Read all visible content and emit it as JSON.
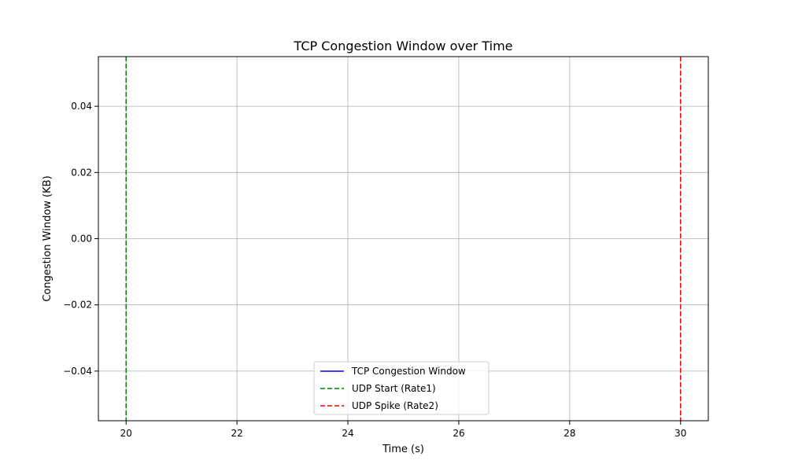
{
  "chart_data": {
    "type": "line",
    "title": "TCP Congestion Window over Time",
    "xlabel": "Time (s)",
    "ylabel": "Congestion Window (KB)",
    "xlim": [
      19.5,
      30.5
    ],
    "ylim": [
      -0.055,
      0.055
    ],
    "xticks": [
      20,
      22,
      24,
      26,
      28,
      30
    ],
    "xtick_labels": [
      "20",
      "22",
      "24",
      "26",
      "28",
      "30"
    ],
    "yticks": [
      -0.04,
      -0.02,
      0.0,
      0.02,
      0.04
    ],
    "ytick_labels": [
      "−0.04",
      "−0.02",
      "0.00",
      "0.02",
      "0.04"
    ],
    "grid": true,
    "legend_position": "lower center",
    "series": [
      {
        "name": "TCP Congestion Window",
        "x": [],
        "y": [],
        "color": "#0000ff",
        "style": "solid"
      }
    ],
    "vlines": [
      {
        "name": "UDP Start (Rate1)",
        "x": 20,
        "color": "#008000",
        "style": "dashed"
      },
      {
        "name": "UDP Spike (Rate2)",
        "x": 30,
        "color": "#ff0000",
        "style": "dashed"
      }
    ],
    "legend": [
      {
        "label": "TCP Congestion Window",
        "color": "#0000ff",
        "style": "solid"
      },
      {
        "label": "UDP Start (Rate1)",
        "color": "#008000",
        "style": "dashed"
      },
      {
        "label": "UDP Spike (Rate2)",
        "color": "#ff0000",
        "style": "dashed"
      }
    ]
  }
}
